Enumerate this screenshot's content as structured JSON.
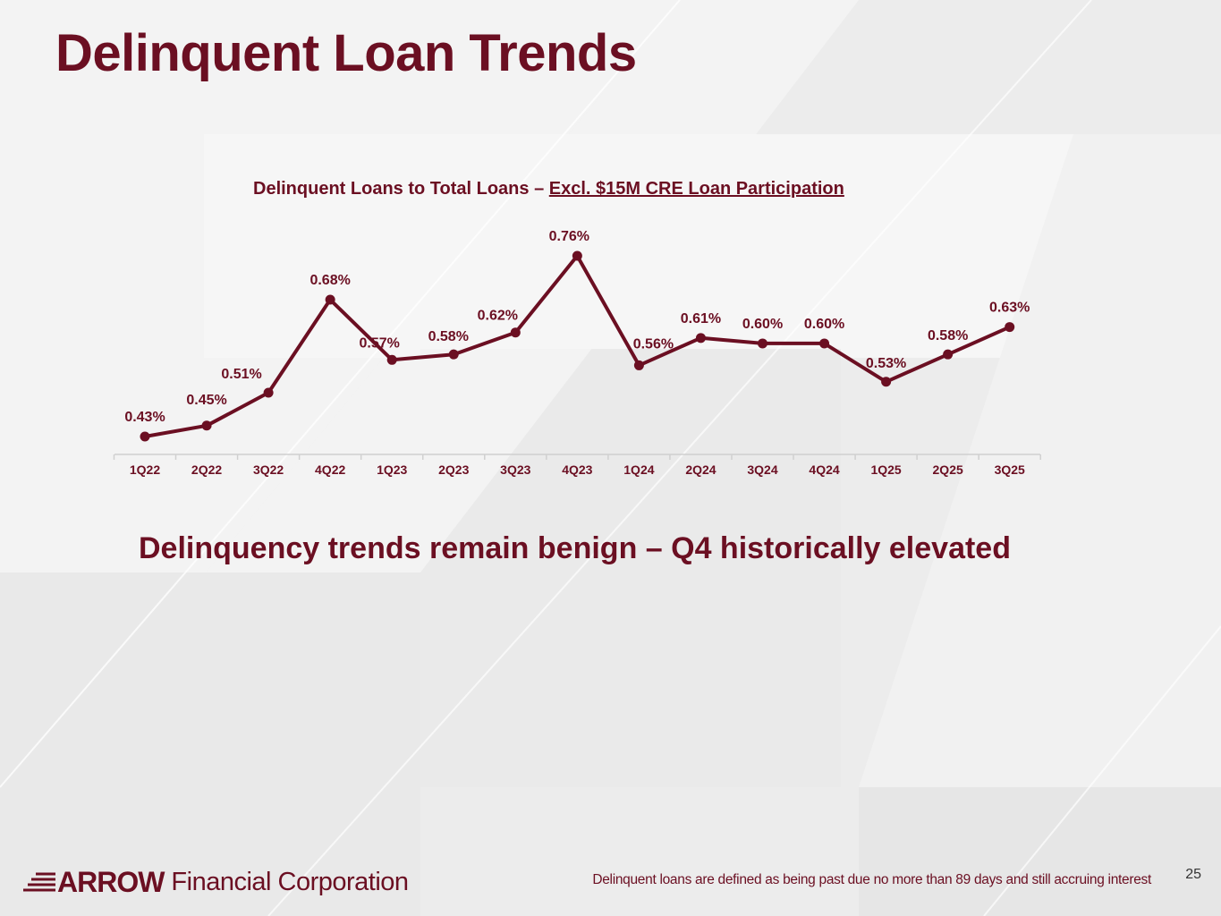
{
  "slide": {
    "title": "Delinquent Loan Trends",
    "callout": "Delinquency trends remain benign – Q4 historically elevated",
    "footnote": "Delinquent loans are defined as being past due no more than 89 days and still accruing interest",
    "page_number": "25"
  },
  "logo": {
    "brand": "ARROW",
    "subtitle": "Financial Corporation"
  },
  "colors": {
    "primary": "#6b0f22",
    "axis": "#d0d0d0"
  },
  "chart_data": {
    "type": "line",
    "title_part1": "Delinquent Loans to Total Loans – ",
    "title_part2": "Excl. $15M CRE Loan Participation",
    "categories": [
      "1Q22",
      "2Q22",
      "3Q22",
      "4Q22",
      "1Q23",
      "2Q23",
      "3Q23",
      "4Q23",
      "1Q24",
      "2Q24",
      "3Q24",
      "4Q24",
      "1Q25",
      "2Q25",
      "3Q25"
    ],
    "values": [
      0.43,
      0.45,
      0.51,
      0.68,
      0.57,
      0.58,
      0.62,
      0.76,
      0.56,
      0.61,
      0.6,
      0.6,
      0.53,
      0.58,
      0.63
    ],
    "labels": [
      "0.43%",
      "0.45%",
      "0.51%",
      "0.68%",
      "0.57%",
      "0.58%",
      "0.62%",
      "0.76%",
      "0.56%",
      "0.61%",
      "0.60%",
      "0.60%",
      "0.53%",
      "0.58%",
      "0.63%"
    ],
    "xlabel": "",
    "ylabel": "",
    "ylim": [
      0.4,
      0.76
    ],
    "grid": false,
    "legend": "none"
  }
}
